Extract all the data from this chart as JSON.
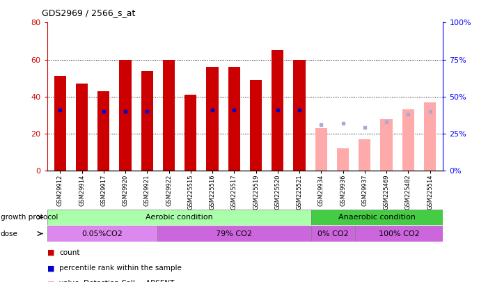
{
  "title": "GDS2969 / 2566_s_at",
  "samples": [
    "GSM29912",
    "GSM29914",
    "GSM29917",
    "GSM29920",
    "GSM29921",
    "GSM29922",
    "GSM225515",
    "GSM225516",
    "GSM225517",
    "GSM225519",
    "GSM225520",
    "GSM225521",
    "GSM29934",
    "GSM29936",
    "GSM29937",
    "GSM225469",
    "GSM225482",
    "GSM225514"
  ],
  "count_values": [
    51,
    47,
    43,
    60,
    54,
    60,
    41,
    56,
    56,
    49,
    65,
    60,
    null,
    null,
    null,
    null,
    null,
    null
  ],
  "count_absent": [
    null,
    null,
    null,
    null,
    null,
    null,
    null,
    null,
    null,
    null,
    null,
    null,
    23,
    12,
    17,
    28,
    33,
    37
  ],
  "rank_values": [
    41,
    null,
    40,
    40,
    40,
    null,
    null,
    41,
    41,
    null,
    41,
    41,
    null,
    null,
    null,
    null,
    null,
    null
  ],
  "rank_absent": [
    null,
    null,
    null,
    null,
    null,
    null,
    null,
    null,
    null,
    null,
    null,
    null,
    31,
    32,
    29,
    33,
    38,
    40
  ],
  "ylim_left": [
    0,
    80
  ],
  "ylim_right": [
    0,
    100
  ],
  "yticks_left": [
    0,
    20,
    40,
    60,
    80
  ],
  "yticks_right": [
    0,
    25,
    50,
    75,
    100
  ],
  "color_count": "#cc0000",
  "color_count_absent": "#ffaaaa",
  "color_rank": "#0000cc",
  "color_rank_absent": "#aaaacc",
  "bar_width": 0.55,
  "growth_protocol_labels": [
    "Aerobic condition",
    "Anaerobic condition"
  ],
  "growth_protocol_color_aerobic": "#aaffaa",
  "growth_protocol_color_anaerobic": "#44cc44",
  "dose_labels": [
    "0.05%CO2",
    "79% CO2",
    "0% CO2",
    "100% CO2"
  ],
  "dose_ranges_idx": [
    [
      0,
      5
    ],
    [
      5,
      12
    ],
    [
      12,
      14
    ],
    [
      14,
      18
    ]
  ],
  "dose_colors": [
    "#dd88ee",
    "#cc66dd",
    "#cc66dd",
    "#cc66dd"
  ],
  "background_color": "#ffffff"
}
